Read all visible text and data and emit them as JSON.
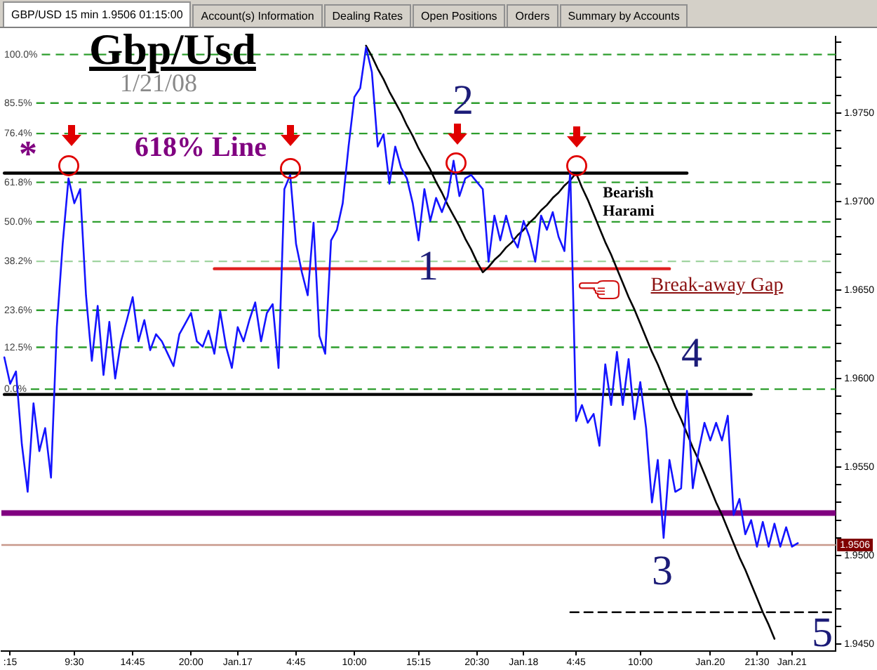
{
  "chart_data": {
    "type": "line",
    "title": "Gbp/Usd",
    "subtitle": "1/21/08",
    "annotations": [
      "GBP/USD 15 min 1.9506 01:15:00",
      "Account(s) Information",
      "Dealing Rates",
      "Open Positions",
      "Orders",
      "Summary by Accounts",
      "*",
      "618% Line",
      "2",
      "1",
      "Bearish Harami",
      "Break-away Gap",
      "4",
      "3",
      "5"
    ],
    "categories": [
      null,
      ":15",
      null,
      null,
      null,
      null,
      null,
      null,
      null,
      null,
      null,
      null,
      "9:30",
      null,
      null,
      null,
      null,
      null,
      null,
      null,
      null,
      null,
      "14:45",
      null,
      null,
      null,
      null,
      null,
      null,
      null,
      null,
      null,
      "20:00",
      null,
      null,
      null,
      null,
      null,
      null,
      null,
      "Jan.17",
      null,
      null,
      null,
      null,
      null,
      null,
      null,
      null,
      null,
      "4:45",
      null,
      null,
      null,
      null,
      null,
      null,
      null,
      null,
      null,
      "10:00",
      null,
      null,
      null,
      null,
      null,
      null,
      null,
      null,
      null,
      null,
      "15:15",
      null,
      null,
      null,
      null,
      null,
      null,
      null,
      null,
      null,
      "20:30",
      null,
      null,
      null,
      null,
      null,
      null,
      null,
      "Jan.18",
      null,
      null,
      null,
      null,
      null,
      null,
      null,
      null,
      "4:45",
      null,
      null,
      null,
      null,
      null,
      null,
      null,
      null,
      null,
      null,
      "10:00",
      null,
      null,
      null,
      null,
      null,
      null,
      null,
      null,
      null,
      null,
      null,
      "Jan.20",
      null,
      null,
      null,
      null,
      null,
      null,
      null,
      "21:30",
      null,
      null,
      null,
      null,
      null,
      "Jan.21",
      null,
      null,
      null,
      null,
      null,
      null,
      null
    ],
    "series": [
      {
        "color": "#1414ff",
        "values": [
          1.9612,
          1.9597,
          1.9604,
          1.9563,
          1.9536,
          1.9586,
          1.9559,
          1.9572,
          1.9544,
          1.9629,
          1.9676,
          1.9713,
          1.9699,
          1.9707,
          1.9647,
          1.961,
          1.9641,
          1.9602,
          1.9632,
          1.96,
          1.9621,
          1.9633,
          1.9646,
          1.9621,
          1.9633,
          1.9616,
          1.9625,
          1.9621,
          1.9614,
          1.9607,
          1.9625,
          1.9631,
          1.9637,
          1.9621,
          1.9618,
          1.9627,
          1.9614,
          1.9638,
          1.9618,
          1.9606,
          1.9629,
          1.9621,
          1.9633,
          1.9643,
          1.9621,
          1.9637,
          1.9642,
          1.9606,
          1.9707,
          1.9715,
          1.9676,
          1.966,
          1.9647,
          1.9688,
          1.9624,
          1.9614,
          1.9678,
          1.9684,
          1.9699,
          1.9731,
          1.9759,
          1.9764,
          1.9787,
          1.9773,
          1.9731,
          1.9738,
          1.971,
          1.9731,
          1.9719,
          1.9713,
          1.9699,
          1.9678,
          1.9707,
          1.9689,
          1.9702,
          1.9694,
          1.9703,
          1.9723,
          1.9703,
          1.9713,
          1.9715,
          1.9711,
          1.9707,
          1.9666,
          1.9692,
          1.9678,
          1.9692,
          1.968,
          1.9674,
          1.9689,
          1.968,
          1.9666,
          1.9692,
          1.9684,
          1.9694,
          1.968,
          1.9672,
          1.9717,
          1.9576,
          1.9585,
          1.9575,
          1.958,
          1.9562,
          1.9608,
          1.9585,
          1.9615,
          1.9585,
          1.9611,
          1.9577,
          1.9598,
          1.9572,
          1.953,
          1.9554,
          1.951,
          1.9554,
          1.9536,
          1.9538,
          1.9593,
          1.9538,
          1.9559,
          1.9575,
          1.9565,
          1.9575,
          1.9565,
          1.9579,
          1.9523,
          1.9532,
          1.9512,
          1.952,
          1.9505,
          1.9519,
          1.9505,
          1.9518,
          1.9505,
          1.9516,
          1.9505,
          1.9507,
          null,
          null,
          null,
          null,
          null,
          null
        ]
      },
      {
        "type": "line",
        "color": "#000000",
        "values": [
          null,
          null,
          null,
          null,
          null,
          null,
          null,
          null,
          null,
          null,
          null,
          null,
          null,
          null,
          null,
          null,
          null,
          null,
          null,
          null,
          null,
          null,
          null,
          null,
          null,
          null,
          null,
          null,
          null,
          null,
          null,
          null,
          null,
          null,
          null,
          null,
          null,
          null,
          null,
          null,
          null,
          null,
          null,
          null,
          null,
          null,
          null,
          null,
          null,
          null,
          null,
          null,
          null,
          null,
          null,
          null,
          null,
          null,
          null,
          null,
          null,
          null,
          1.9788,
          1.9782,
          1.9775,
          1.9769,
          1.9762,
          1.9756,
          1.975,
          1.9743,
          1.9737,
          1.973,
          1.9724,
          1.9718,
          1.9711,
          1.9705,
          1.9698,
          1.9692,
          1.9686,
          1.9679,
          1.9673,
          1.9666,
          1.966,
          1.9663,
          1.9667,
          1.967,
          1.9674,
          1.9677,
          1.9681,
          1.9684,
          1.9688,
          1.9691,
          1.9695,
          1.9698,
          1.9702,
          1.9705,
          1.9709,
          1.9712,
          1.9716,
          1.9708,
          1.9701,
          1.9693,
          1.9685,
          1.9677,
          1.967,
          1.9662,
          1.9654,
          1.9646,
          1.9639,
          1.9631,
          1.9623,
          1.9615,
          1.9608,
          1.96,
          1.9592,
          1.9584,
          1.9577,
          1.9569,
          1.9561,
          1.9554,
          1.9546,
          1.9538,
          1.953,
          1.9523,
          1.9515,
          1.9507,
          1.9499,
          1.9492,
          1.9484,
          1.9476,
          1.9468,
          1.9461,
          1.9453,
          null,
          null,
          null,
          null,
          null,
          null,
          null,
          null,
          null,
          null
        ]
      },
      {
        "type": "line",
        "color": "#000000",
        "values": [
          1.9716,
          1.9716,
          1.9716,
          1.9716,
          1.9716,
          1.9716,
          1.9716,
          1.9716,
          1.9716,
          1.9716,
          1.9716,
          1.9716,
          1.9716,
          1.9716,
          1.9716,
          1.9716,
          1.9716,
          1.9716,
          1.9716,
          1.9716,
          1.9716,
          1.9716,
          1.9716,
          1.9716,
          1.9716,
          1.9716,
          1.9716,
          1.9716,
          1.9716,
          1.9716,
          1.9716,
          1.9716,
          1.9716,
          1.9716,
          1.9716,
          1.9716,
          1.9716,
          1.9716,
          1.9716,
          1.9716,
          1.9716,
          1.9716,
          1.9716,
          1.9716,
          1.9716,
          1.9716,
          1.9716,
          1.9716,
          1.9716,
          1.9716,
          1.9716,
          1.9716,
          1.9716,
          1.9716,
          1.9716,
          1.9716,
          1.9716,
          1.9716,
          1.9716,
          1.9716,
          1.9716,
          1.9716,
          1.9716,
          1.9716,
          1.9716,
          1.9716,
          1.9716,
          1.9716,
          1.9716,
          1.9716,
          1.9716,
          1.9716,
          1.9716,
          1.9716,
          1.9716,
          1.9716,
          1.9716,
          1.9716,
          1.9716,
          1.9716,
          1.9716,
          1.9716,
          1.9716,
          1.9716,
          1.9716,
          1.9716,
          1.9716,
          1.9716,
          1.9716,
          1.9716,
          1.9716,
          1.9716,
          1.9716,
          1.9716,
          1.9716,
          1.9716,
          1.9716,
          1.9716,
          1.9716,
          1.9716,
          1.9716,
          1.9716,
          1.9716,
          1.9716,
          1.9716,
          1.9716,
          1.9716,
          1.9716,
          1.9716,
          1.9716,
          1.9716,
          1.9716,
          1.9716,
          1.9716,
          1.9716,
          1.9716,
          1.9716,
          1.9716,
          null,
          null,
          null,
          null,
          null,
          null,
          null,
          null,
          null,
          null,
          null,
          null,
          null,
          null,
          null,
          null,
          null,
          null,
          null,
          null,
          null,
          null,
          null,
          null,
          null
        ]
      },
      {
        "type": "line",
        "color": "#e02020",
        "values": [
          null,
          null,
          null,
          null,
          null,
          null,
          null,
          null,
          null,
          null,
          null,
          null,
          null,
          null,
          null,
          null,
          null,
          null,
          null,
          null,
          null,
          null,
          null,
          null,
          null,
          null,
          null,
          null,
          null,
          null,
          null,
          null,
          null,
          null,
          null,
          null,
          1.9662,
          1.9662,
          1.9662,
          1.9662,
          1.9662,
          1.9662,
          1.9662,
          1.9662,
          1.9662,
          1.9662,
          1.9662,
          1.9662,
          1.9662,
          1.9662,
          1.9662,
          1.9662,
          1.9662,
          1.9662,
          1.9662,
          1.9662,
          1.9662,
          1.9662,
          1.9662,
          1.9662,
          1.9662,
          1.9662,
          1.9662,
          1.9662,
          1.9662,
          1.9662,
          1.9662,
          1.9662,
          1.9662,
          1.9662,
          1.9662,
          1.9662,
          1.9662,
          1.9662,
          1.9662,
          1.9662,
          1.9662,
          1.9662,
          1.9662,
          1.9662,
          1.9662,
          1.9662,
          1.9662,
          1.9662,
          1.9662,
          1.9662,
          1.9662,
          1.9662,
          1.9662,
          1.9662,
          1.9662,
          1.9662,
          1.9662,
          1.9662,
          1.9662,
          1.9662,
          1.9662,
          1.9662,
          1.9662,
          1.9662,
          1.9662,
          1.9662,
          1.9662,
          1.9662,
          1.9662,
          1.9662,
          1.9662,
          1.9662,
          1.9662,
          1.9662,
          1.9662,
          1.9662,
          1.9662,
          1.9662,
          1.9662,
          null,
          null,
          null,
          null,
          null,
          null,
          null,
          null,
          null,
          null,
          null,
          null,
          null,
          null,
          null,
          null,
          null,
          null,
          null,
          null,
          null,
          null,
          null,
          null,
          null,
          null,
          null,
          null
        ]
      },
      {
        "type": "line",
        "color": "#000000",
        "values": [
          1.9591,
          1.9591,
          1.9591,
          1.9591,
          1.9591,
          1.9591,
          1.9591,
          1.9591,
          1.9591,
          1.9591,
          1.9591,
          1.9591,
          1.9591,
          1.9591,
          1.9591,
          1.9591,
          1.9591,
          1.9591,
          1.9591,
          1.9591,
          1.9591,
          1.9591,
          1.9591,
          1.9591,
          1.9591,
          1.9591,
          1.9591,
          1.9591,
          1.9591,
          1.9591,
          1.9591,
          1.9591,
          1.9591,
          1.9591,
          1.9591,
          1.9591,
          1.9591,
          1.9591,
          1.9591,
          1.9591,
          1.9591,
          1.9591,
          1.9591,
          1.9591,
          1.9591,
          1.9591,
          1.9591,
          1.9591,
          1.9591,
          1.9591,
          1.9591,
          1.9591,
          1.9591,
          1.9591,
          1.9591,
          1.9591,
          1.9591,
          1.9591,
          1.9591,
          1.9591,
          1.9591,
          1.9591,
          1.9591,
          1.9591,
          1.9591,
          1.9591,
          1.9591,
          1.9591,
          1.9591,
          1.9591,
          1.9591,
          1.9591,
          1.9591,
          1.9591,
          1.9591,
          1.9591,
          1.9591,
          1.9591,
          1.9591,
          1.9591,
          1.9591,
          1.9591,
          1.9591,
          1.9591,
          1.9591,
          1.9591,
          1.9591,
          1.9591,
          1.9591,
          1.9591,
          1.9591,
          1.9591,
          1.9591,
          1.9591,
          1.9591,
          1.9591,
          1.9591,
          1.9591,
          1.9591,
          1.9591,
          1.9591,
          1.9591,
          1.9591,
          1.9591,
          1.9591,
          1.9591,
          1.9591,
          1.9591,
          1.9591,
          1.9591,
          1.9591,
          1.9591,
          1.9591,
          1.9591,
          1.9591,
          1.9591,
          1.9591,
          1.9591,
          1.9591,
          1.9591,
          1.9591,
          1.9591,
          1.9591,
          1.9591,
          1.9591,
          1.9591,
          1.9591,
          1.9591,
          1.9591,
          null,
          null,
          null,
          null,
          null,
          null,
          null,
          null,
          null,
          null,
          null,
          null,
          null,
          null
        ]
      },
      {
        "type": "line",
        "color": "#000000",
        "line_style": "dashed",
        "values": [
          null,
          null,
          null,
          null,
          null,
          null,
          null,
          null,
          null,
          null,
          null,
          null,
          null,
          null,
          null,
          null,
          null,
          null,
          null,
          null,
          null,
          null,
          null,
          null,
          null,
          null,
          null,
          null,
          null,
          null,
          null,
          null,
          null,
          null,
          null,
          null,
          null,
          null,
          null,
          null,
          null,
          null,
          null,
          null,
          null,
          null,
          null,
          null,
          null,
          null,
          null,
          null,
          null,
          null,
          null,
          null,
          null,
          null,
          null,
          null,
          null,
          null,
          null,
          null,
          null,
          null,
          null,
          null,
          null,
          null,
          null,
          null,
          null,
          null,
          null,
          null,
          null,
          null,
          null,
          null,
          null,
          null,
          null,
          null,
          null,
          null,
          null,
          null,
          null,
          null,
          null,
          null,
          null,
          null,
          null,
          null,
          null,
          1.9468,
          1.9468,
          1.9468,
          1.9468,
          1.9468,
          1.9468,
          1.9468,
          1.9468,
          1.9468,
          1.9468,
          1.9468,
          1.9468,
          1.9468,
          1.9468,
          1.9468,
          1.9468,
          1.9468,
          1.9468,
          1.9468,
          1.9468,
          1.9468,
          1.9468,
          1.9468,
          1.9468,
          1.9468,
          1.9468,
          1.9468,
          1.9468,
          1.9468,
          1.9468,
          1.9468,
          1.9468,
          1.9468,
          1.9468,
          1.9468,
          1.9468,
          1.9468,
          1.9468,
          1.9468,
          1.9468,
          1.9468,
          1.9468,
          1.9468,
          1.9468,
          1.9468,
          1.9468
        ]
      }
    ],
    "ref_lines": [
      {
        "axis": "y2",
        "value": 100,
        "label": "100.0%",
        "color": "#2e9e2e",
        "line_style": "dashed"
      },
      {
        "axis": "y2",
        "value": 85.5,
        "label": "85.5%",
        "color": "#2e9e2e",
        "line_style": "dashed"
      },
      {
        "axis": "y2",
        "value": 76.4,
        "label": "76.4%",
        "color": "#2e9e2e",
        "line_style": "dashed"
      },
      {
        "axis": "y2",
        "value": 61.8,
        "label": "61.8%",
        "color": "#2e9e2e",
        "line_style": "dashed"
      },
      {
        "axis": "y2",
        "value": 50,
        "label": "50.0%",
        "color": "#2e9e2e",
        "line_style": "dashed"
      },
      {
        "axis": "y2",
        "value": 38.2,
        "label": "38.2%",
        "color": "#9fd49f",
        "line_style": "dashed"
      },
      {
        "axis": "y2",
        "value": 23.6,
        "label": "23.6%",
        "color": "#2e9e2e",
        "line_style": "dashed"
      },
      {
        "axis": "y2",
        "value": 12.5,
        "label": "12.5%",
        "color": "#2e9e2e",
        "line_style": "dashed"
      },
      {
        "axis": "y2",
        "value": 0,
        "label": "0.0%",
        "color": "#2e9e2e",
        "line_style": "dashed"
      },
      {
        "axis": "y",
        "value": 1.9524,
        "color": "#800080"
      },
      {
        "axis": "y",
        "value": 1.9506,
        "label": "1.9506",
        "color": "#c8988a"
      }
    ],
    "ylim": [
      1.9446,
      1.9793
    ],
    "yticks": [
      {
        "value": 1.945,
        "label": "1.9450"
      },
      {
        "value": 1.946,
        "label": null
      },
      {
        "value": 1.947,
        "label": null
      },
      {
        "value": 1.948,
        "label": null
      },
      {
        "value": 1.949,
        "label": null
      },
      {
        "value": 1.95,
        "label": "1.9500"
      },
      {
        "value": 1.951,
        "label": null
      },
      {
        "value": 1.952,
        "label": null
      },
      {
        "value": 1.953,
        "label": null
      },
      {
        "value": 1.954,
        "label": null
      },
      {
        "value": 1.955,
        "label": "1.9550"
      },
      {
        "value": 1.956,
        "label": null
      },
      {
        "value": 1.957,
        "label": null
      },
      {
        "value": 1.958,
        "label": null
      },
      {
        "value": 1.959,
        "label": null
      },
      {
        "value": 1.96,
        "label": "1.9600"
      },
      {
        "value": 1.961,
        "label": null
      },
      {
        "value": 1.962,
        "label": null
      },
      {
        "value": 1.963,
        "label": null
      },
      {
        "value": 1.964,
        "label": null
      },
      {
        "value": 1.965,
        "label": "1.9650"
      },
      {
        "value": 1.966,
        "label": null
      },
      {
        "value": 1.967,
        "label": null
      },
      {
        "value": 1.968,
        "label": null
      },
      {
        "value": 1.969,
        "label": null
      },
      {
        "value": 1.97,
        "label": "1.9700"
      },
      {
        "value": 1.971,
        "label": null
      },
      {
        "value": 1.972,
        "label": null
      },
      {
        "value": 1.973,
        "label": null
      },
      {
        "value": 1.974,
        "label": null
      },
      {
        "value": 1.975,
        "label": "1.9750"
      },
      {
        "value": 1.976,
        "label": null
      },
      {
        "value": 1.977,
        "label": null
      },
      {
        "value": 1.978,
        "label": null
      },
      {
        "value": 1.979,
        "label": null
      }
    ],
    "y2lim": [
      -78.3,
      105.3
    ]
  }
}
